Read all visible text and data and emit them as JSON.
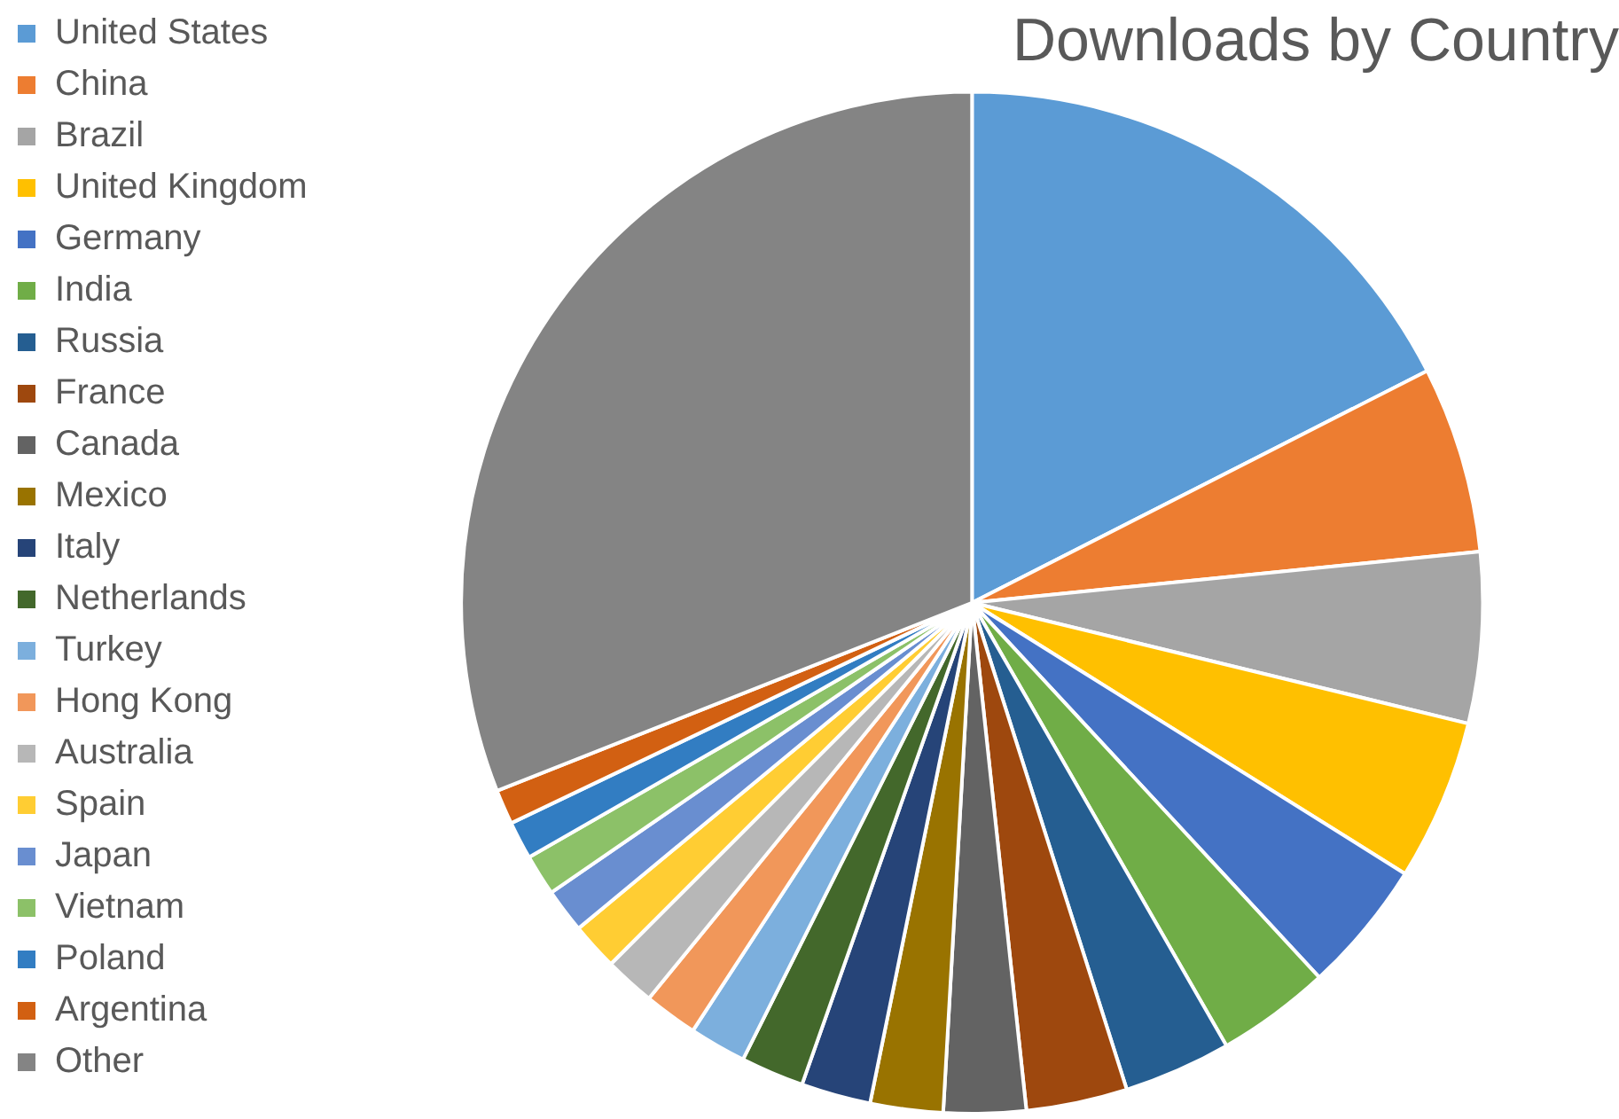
{
  "chart_data": {
    "type": "pie",
    "title": "Downloads by Country",
    "categories": [
      "United States",
      "China",
      "Brazil",
      "United Kingdom",
      "Germany",
      "India",
      "Russia",
      "France",
      "Canada",
      "Mexico",
      "Italy",
      "Netherlands",
      "Turkey",
      "Hong Kong",
      "Australia",
      "Spain",
      "Japan",
      "Vietnam",
      "Poland",
      "Argentina",
      "Other"
    ],
    "values": [
      17.5,
      5.9,
      5.4,
      5.1,
      4.2,
      3.6,
      3.4,
      3.2,
      2.6,
      2.3,
      2.2,
      2.0,
      1.8,
      1.7,
      1.6,
      1.5,
      1.4,
      1.3,
      1.2,
      1.1,
      31.0
    ],
    "colors": [
      "#5b9bd5",
      "#ed7d31",
      "#a5a5a5",
      "#ffc000",
      "#4472c4",
      "#70ad47",
      "#255e91",
      "#9e480e",
      "#636363",
      "#997300",
      "#264478",
      "#43682b",
      "#7cafdd",
      "#f1975a",
      "#b7b7b7",
      "#ffcd33",
      "#698ed0",
      "#8cc168",
      "#327dc2",
      "#d26012",
      "#848484"
    ],
    "legend": "left"
  }
}
